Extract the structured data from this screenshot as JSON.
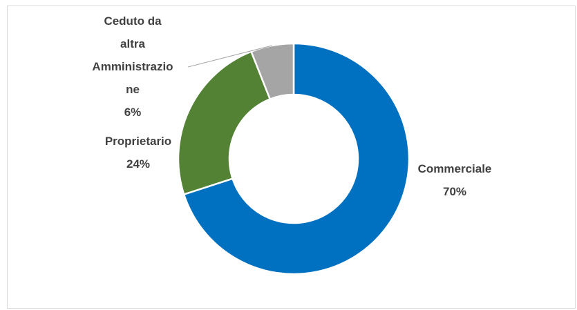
{
  "chart_data": {
    "type": "donut",
    "categories": [
      "Commerciale",
      "Proprietario",
      "Ceduto da altra Amministrazione"
    ],
    "values": [
      70,
      24,
      6
    ],
    "value_labels": [
      "70%",
      "24%",
      "6%"
    ],
    "colors": [
      "#0070c0",
      "#548235",
      "#a5a5a5"
    ]
  }
}
